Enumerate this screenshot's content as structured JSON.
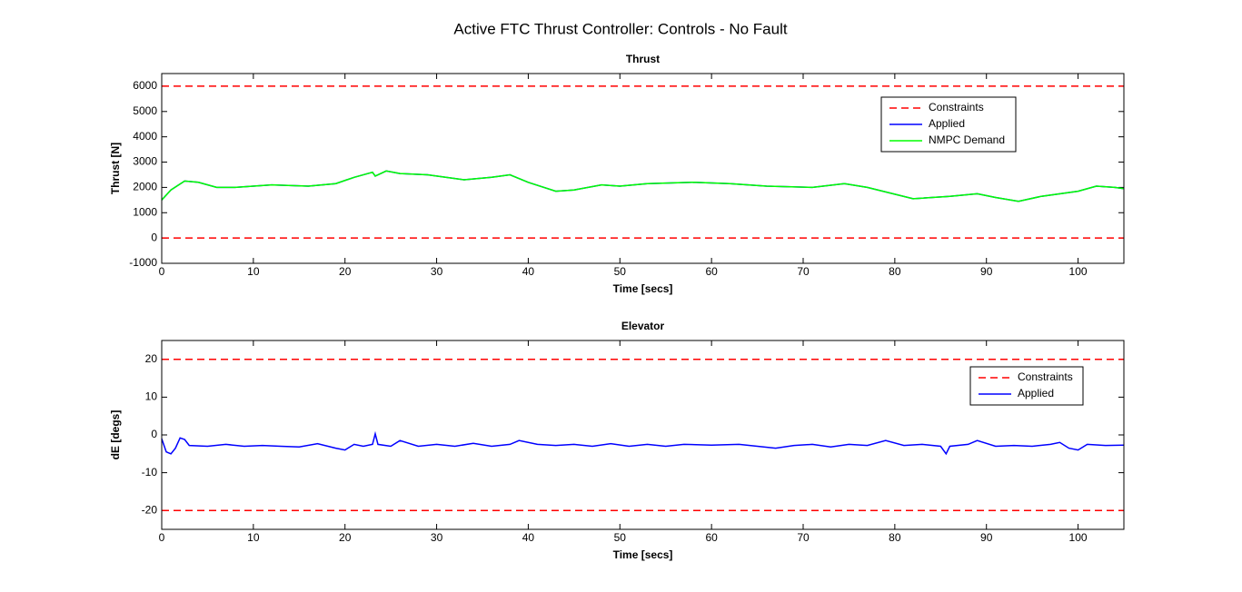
{
  "title": "Active FTC Thrust Controller: Controls - No Fault",
  "chart_data": [
    {
      "type": "line",
      "title": "Thrust",
      "x_label": "Time [secs]",
      "y_label": "Thrust [N]",
      "xlim": [
        0,
        105
      ],
      "ylim": [
        -1000,
        6500
      ],
      "xticks": [
        0,
        10,
        20,
        30,
        40,
        50,
        60,
        70,
        80,
        90,
        100
      ],
      "yticks": [
        -1000,
        0,
        1000,
        2000,
        3000,
        4000,
        5000,
        6000
      ],
      "legend": "northeast",
      "x": [
        0,
        1,
        2.5,
        4,
        6,
        8,
        12,
        16,
        19,
        21,
        23,
        23.3,
        24.5,
        26,
        29,
        33,
        36,
        38,
        40,
        43,
        45,
        48,
        50,
        53,
        58,
        62,
        66,
        71,
        74.5,
        77,
        82,
        86,
        89,
        91,
        93.5,
        96,
        100,
        102,
        104,
        105
      ],
      "series": [
        {
          "name": "Constraints",
          "color": "#ff0000",
          "dashed": true,
          "levels": [
            6000,
            0
          ]
        },
        {
          "name": "Applied",
          "color": "#0000ff",
          "values": [
            1500,
            1900,
            2250,
            2200,
            2000,
            2000,
            2100,
            2050,
            2150,
            2400,
            2600,
            2450,
            2650,
            2550,
            2500,
            2300,
            2400,
            2500,
            2200,
            1850,
            1900,
            2100,
            2050,
            2150,
            2200,
            2150,
            2050,
            2000,
            2150,
            2000,
            1550,
            1650,
            1750,
            1600,
            1450,
            1650,
            1850,
            2050,
            2000,
            1950
          ]
        },
        {
          "name": "NMPC Demand",
          "color": "#00ff00",
          "values": [
            1500,
            1900,
            2250,
            2200,
            2000,
            2000,
            2100,
            2050,
            2150,
            2400,
            2600,
            2450,
            2650,
            2550,
            2500,
            2300,
            2400,
            2500,
            2200,
            1850,
            1900,
            2100,
            2050,
            2150,
            2200,
            2150,
            2050,
            2000,
            2150,
            2000,
            1550,
            1650,
            1750,
            1600,
            1450,
            1650,
            1850,
            2050,
            2000,
            1950
          ]
        }
      ]
    },
    {
      "type": "line",
      "title": "Elevator",
      "x_label": "Time [secs]",
      "y_label": "dE [degs]",
      "xlim": [
        0,
        105
      ],
      "ylim": [
        -25,
        25
      ],
      "xticks": [
        0,
        10,
        20,
        30,
        40,
        50,
        60,
        70,
        80,
        90,
        100
      ],
      "yticks": [
        -20,
        -10,
        0,
        10,
        20
      ],
      "legend": "northeast",
      "x": [
        0,
        0.5,
        1,
        1.5,
        2,
        2.5,
        3,
        5,
        7,
        9,
        11,
        13,
        15,
        17,
        19,
        20,
        21,
        22,
        23,
        23.3,
        23.6,
        25,
        26,
        28,
        30,
        32,
        34,
        36,
        38,
        39,
        41,
        43,
        45,
        47,
        49,
        51,
        53,
        55,
        57,
        60,
        63,
        65,
        67,
        69,
        71,
        73,
        75,
        77,
        79,
        81,
        83,
        85,
        85.6,
        86,
        88,
        89,
        91,
        93,
        95,
        97,
        98,
        99,
        100,
        101,
        103,
        105
      ],
      "series": [
        {
          "name": "Constraints",
          "color": "#ff0000",
          "dashed": true,
          "levels": [
            20,
            -20
          ]
        },
        {
          "name": "Applied",
          "color": "#0000ff",
          "values": [
            -1,
            -4.5,
            -5,
            -3.5,
            -0.8,
            -1.2,
            -2.8,
            -3,
            -2.5,
            -3,
            -2.8,
            -3,
            -3.2,
            -2.3,
            -3.5,
            -4,
            -2.5,
            -3,
            -2.5,
            0.3,
            -2.5,
            -3,
            -1.5,
            -3,
            -2.5,
            -3,
            -2.2,
            -3,
            -2.5,
            -1.5,
            -2.5,
            -2.8,
            -2.5,
            -3,
            -2.3,
            -3,
            -2.5,
            -3,
            -2.5,
            -2.7,
            -2.5,
            -3,
            -3.5,
            -2.8,
            -2.5,
            -3.2,
            -2.5,
            -2.8,
            -1.5,
            -2.8,
            -2.5,
            -3,
            -5,
            -3,
            -2.5,
            -1.5,
            -3,
            -2.8,
            -3,
            -2.5,
            -2,
            -3.5,
            -4,
            -2.5,
            -2.8,
            -2.7
          ]
        }
      ]
    }
  ]
}
